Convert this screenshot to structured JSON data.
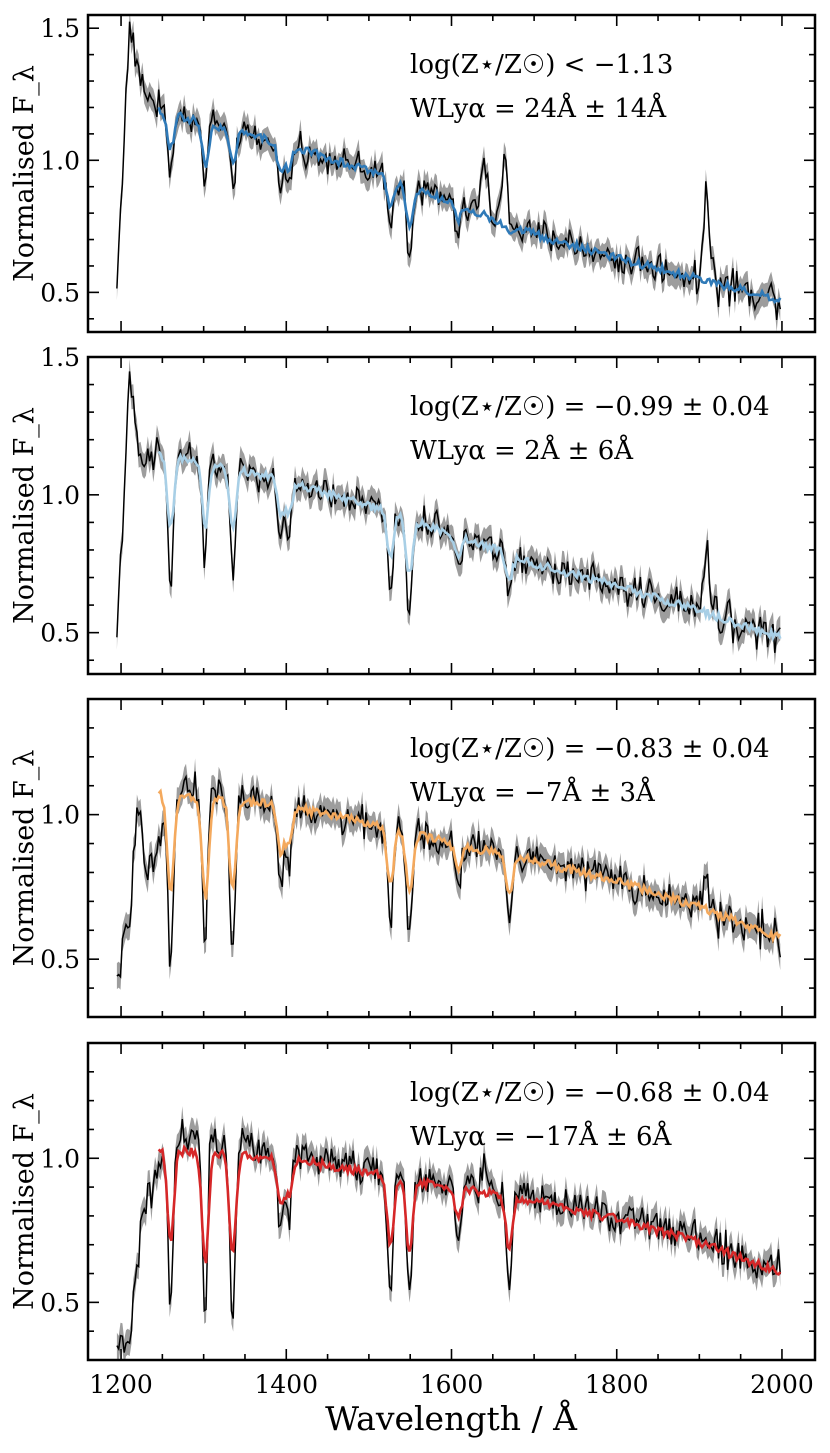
{
  "chart_data": [
    {
      "type": "line",
      "ylabel": "Normalised F_λ",
      "ylim": [
        0.35,
        1.55
      ],
      "xlim": [
        1160,
        2040
      ],
      "yticks": [
        {
          "value": 0.5,
          "label": "0.5"
        },
        {
          "value": 1.0,
          "label": "1.0"
        },
        {
          "value": 1.5,
          "label": "1.5"
        }
      ],
      "annotation_line1": "log(Z⋆/Z☉) < −1.13",
      "annotation_line2": "WLyα = 24Å ± 14Å",
      "model_color": "#2f7ab8",
      "continuum": [
        [
          1195,
          0.52
        ],
        [
          1210,
          1.5
        ],
        [
          1225,
          1.28
        ],
        [
          1245,
          1.2
        ],
        [
          1300,
          1.14
        ],
        [
          1400,
          1.06
        ],
        [
          1500,
          0.96
        ],
        [
          1600,
          0.84
        ],
        [
          1700,
          0.72
        ],
        [
          1800,
          0.63
        ],
        [
          1900,
          0.55
        ],
        [
          2000,
          0.47
        ]
      ],
      "model_continuum": [
        [
          1245,
          1.19
        ],
        [
          1300,
          1.14
        ],
        [
          1400,
          1.06
        ],
        [
          1500,
          0.96
        ],
        [
          1600,
          0.84
        ],
        [
          1700,
          0.72
        ],
        [
          1800,
          0.63
        ],
        [
          1900,
          0.55
        ],
        [
          2000,
          0.47
        ]
      ],
      "absorption": [
        [
          1260,
          0.2
        ],
        [
          1302,
          0.25
        ],
        [
          1335,
          0.2
        ],
        [
          1393,
          0.18
        ],
        [
          1403,
          0.15
        ],
        [
          1526,
          0.2
        ],
        [
          1549,
          0.3
        ],
        [
          1608,
          0.12
        ],
        [
          1670,
          0.1
        ]
      ],
      "emission": [
        [
          1640,
          0.2
        ],
        [
          1665,
          0.3
        ],
        [
          1909,
          0.38
        ],
        [
          1305,
          0.08
        ]
      ]
    },
    {
      "type": "line",
      "ylabel": "Normalised F_λ",
      "ylim": [
        0.35,
        1.5
      ],
      "xlim": [
        1160,
        2040
      ],
      "yticks": [
        {
          "value": 0.5,
          "label": "0.5"
        },
        {
          "value": 1.0,
          "label": "1.0"
        },
        {
          "value": 1.5,
          "label": "1.5"
        }
      ],
      "annotation_line1": "log(Z⋆/Z☉) = −0.99 ± 0.04",
      "annotation_line2": "WLyα = 2Å ± 6Å",
      "model_color": "#a8cfe6",
      "continuum": [
        [
          1195,
          0.5
        ],
        [
          1210,
          1.4
        ],
        [
          1225,
          1.1
        ],
        [
          1245,
          1.15
        ],
        [
          1300,
          1.12
        ],
        [
          1400,
          1.05
        ],
        [
          1500,
          0.96
        ],
        [
          1600,
          0.86
        ],
        [
          1700,
          0.75
        ],
        [
          1800,
          0.67
        ],
        [
          1900,
          0.58
        ],
        [
          2000,
          0.48
        ]
      ],
      "model_continuum": [
        [
          1245,
          1.15
        ],
        [
          1300,
          1.12
        ],
        [
          1400,
          1.05
        ],
        [
          1500,
          0.96
        ],
        [
          1600,
          0.86
        ],
        [
          1700,
          0.75
        ],
        [
          1800,
          0.67
        ],
        [
          1900,
          0.58
        ],
        [
          2000,
          0.48
        ]
      ],
      "absorption": [
        [
          1260,
          0.42
        ],
        [
          1302,
          0.38
        ],
        [
          1335,
          0.36
        ],
        [
          1393,
          0.22
        ],
        [
          1403,
          0.2
        ],
        [
          1526,
          0.3
        ],
        [
          1549,
          0.4
        ],
        [
          1608,
          0.15
        ],
        [
          1670,
          0.2
        ]
      ],
      "emission": [
        [
          1909,
          0.2
        ],
        [
          1305,
          0.08
        ]
      ]
    },
    {
      "type": "line",
      "ylabel": "Normalised F_λ",
      "ylim": [
        0.3,
        1.4
      ],
      "xlim": [
        1160,
        2040
      ],
      "yticks": [
        {
          "value": 0.5,
          "label": "0.5"
        },
        {
          "value": 1.0,
          "label": "1.0"
        }
      ],
      "annotation_line1": "log(Z⋆/Z☉) = −0.83 ± 0.04",
      "annotation_line2": "WLyα = −7Å ± 3Å",
      "model_color": "#f4a95d",
      "continuum": [
        [
          1195,
          0.4
        ],
        [
          1212,
          0.7
        ],
        [
          1220,
          1.05
        ],
        [
          1230,
          0.78
        ],
        [
          1245,
          0.85
        ],
        [
          1260,
          1.1
        ],
        [
          1300,
          1.08
        ],
        [
          1400,
          1.03
        ],
        [
          1500,
          0.97
        ],
        [
          1600,
          0.91
        ],
        [
          1700,
          0.85
        ],
        [
          1800,
          0.77
        ],
        [
          1900,
          0.68
        ],
        [
          2000,
          0.58
        ]
      ],
      "model_continuum": [
        [
          1245,
          1.07
        ],
        [
          1300,
          1.06
        ],
        [
          1400,
          1.03
        ],
        [
          1500,
          0.97
        ],
        [
          1600,
          0.9
        ],
        [
          1700,
          0.84
        ],
        [
          1800,
          0.77
        ],
        [
          1900,
          0.68
        ],
        [
          2000,
          0.57
        ]
      ],
      "absorption": [
        [
          1260,
          0.55
        ],
        [
          1302,
          0.6
        ],
        [
          1335,
          0.52
        ],
        [
          1393,
          0.28
        ],
        [
          1403,
          0.22
        ],
        [
          1526,
          0.38
        ],
        [
          1549,
          0.4
        ],
        [
          1608,
          0.17
        ],
        [
          1670,
          0.3
        ]
      ],
      "emission": [
        [
          1305,
          0.12
        ],
        [
          1909,
          0.1
        ]
      ]
    },
    {
      "type": "line",
      "ylabel": "Normalised F_λ",
      "ylim": [
        0.3,
        1.4
      ],
      "xlim": [
        1160,
        2040
      ],
      "yticks": [
        {
          "value": 0.5,
          "label": "0.5"
        },
        {
          "value": 1.0,
          "label": "1.0"
        }
      ],
      "annotation_line1": "log(Z⋆/Z☉) = −0.68 ± 0.04",
      "annotation_line2": "WLyα = −17Å ± 6Å",
      "model_color": "#d62728",
      "continuum": [
        [
          1195,
          0.32
        ],
        [
          1212,
          0.4
        ],
        [
          1225,
          0.8
        ],
        [
          1245,
          0.95
        ],
        [
          1260,
          1.08
        ],
        [
          1300,
          1.06
        ],
        [
          1400,
          1.02
        ],
        [
          1500,
          0.96
        ],
        [
          1600,
          0.91
        ],
        [
          1700,
          0.86
        ],
        [
          1800,
          0.8
        ],
        [
          1900,
          0.72
        ],
        [
          2000,
          0.6
        ]
      ],
      "model_continuum": [
        [
          1245,
          1.03
        ],
        [
          1300,
          1.02
        ],
        [
          1400,
          1.0
        ],
        [
          1500,
          0.95
        ],
        [
          1600,
          0.9
        ],
        [
          1700,
          0.85
        ],
        [
          1800,
          0.79
        ],
        [
          1900,
          0.71
        ],
        [
          2000,
          0.6
        ]
      ],
      "absorption": [
        [
          1260,
          0.55
        ],
        [
          1302,
          0.68
        ],
        [
          1335,
          0.6
        ],
        [
          1393,
          0.3
        ],
        [
          1403,
          0.22
        ],
        [
          1526,
          0.45
        ],
        [
          1549,
          0.48
        ],
        [
          1608,
          0.2
        ],
        [
          1670,
          0.38
        ]
      ],
      "emission": [
        [
          1305,
          0.15
        ],
        [
          1640,
          0.1
        ]
      ]
    }
  ],
  "xaxis": {
    "label": "Wavelength / Å",
    "ticks": [
      {
        "value": 1200,
        "label": "1200"
      },
      {
        "value": 1400,
        "label": "1400"
      },
      {
        "value": 1600,
        "label": "1600"
      },
      {
        "value": 1800,
        "label": "1800"
      },
      {
        "value": 2000,
        "label": "2000"
      }
    ]
  },
  "colors": {
    "data": "#000000",
    "error": "#8c8c8c"
  }
}
